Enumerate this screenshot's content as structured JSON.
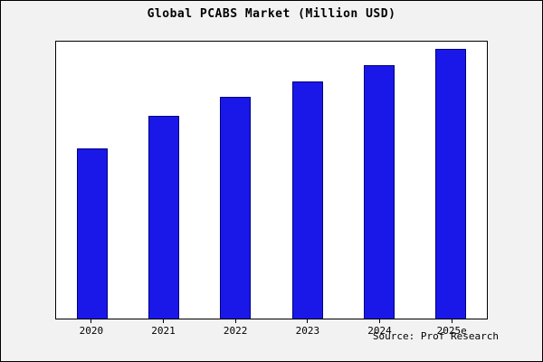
{
  "title": "Global PCABS Market (Million USD)",
  "source": "Source: Prof Research",
  "colors": {
    "bar_fill": "#1a18e8",
    "bar_border": "#000080",
    "background": "#f2f2f2",
    "plot_background": "#ffffff"
  },
  "chart_data": {
    "type": "bar",
    "categories": [
      "2020",
      "2021",
      "2022",
      "2023",
      "2024",
      "2025e"
    ],
    "values": [
      190,
      227,
      248,
      265,
      284,
      302
    ],
    "title": "Global PCABS Market (Million USD)",
    "xlabel": "",
    "ylabel": "",
    "ylim": [
      0,
      310
    ],
    "grid": false,
    "legend": false,
    "source_annotation": "Source: Prof Research"
  }
}
